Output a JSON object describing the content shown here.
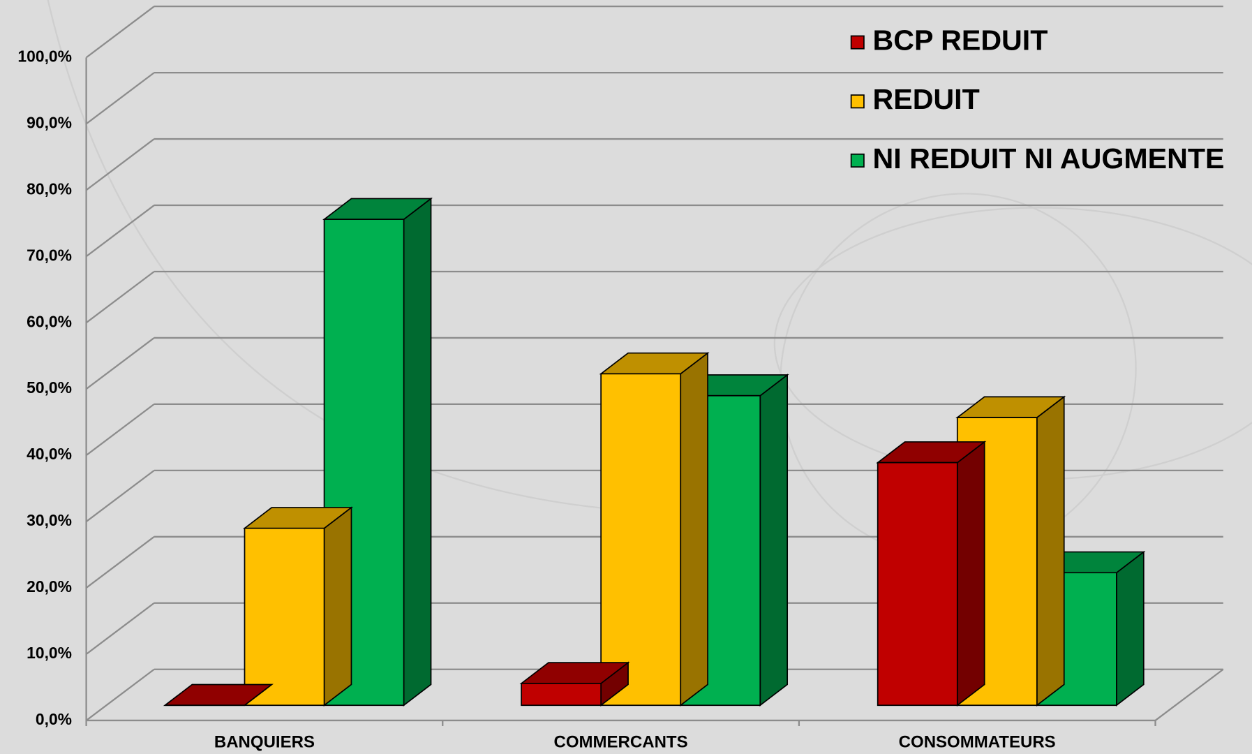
{
  "chart_data": {
    "type": "bar3d",
    "categories": [
      "BANQUIERS",
      "COMMERCANTS",
      "CONSOMMATEURS"
    ],
    "series": [
      {
        "name": "BCP REDUIT",
        "color": "#c00000",
        "values": [
          0,
          3.3,
          36.6
        ]
      },
      {
        "name": "REDUIT",
        "color": "#ffc000",
        "values": [
          26.7,
          50.0,
          43.4
        ]
      },
      {
        "name": "NI REDUIT NI AUGMENTE",
        "color": "#00b050",
        "values": [
          73.3,
          46.7,
          20.0
        ]
      }
    ],
    "ylim": [
      0,
      100
    ],
    "yticks": [
      {
        "value": 0,
        "label": "0,0%"
      },
      {
        "value": 10,
        "label": "10,0%"
      },
      {
        "value": 20,
        "label": "20,0%"
      },
      {
        "value": 30,
        "label": "30,0%"
      },
      {
        "value": 40,
        "label": "40,0%"
      },
      {
        "value": 50,
        "label": "50,0%"
      },
      {
        "value": 60,
        "label": "60,0%"
      },
      {
        "value": 70,
        "label": "70,0%"
      },
      {
        "value": 80,
        "label": "80,0%"
      },
      {
        "value": 90,
        "label": "90,0%"
      },
      {
        "value": 100,
        "label": "100,0%"
      }
    ],
    "grid": true,
    "legend": "top-right"
  }
}
